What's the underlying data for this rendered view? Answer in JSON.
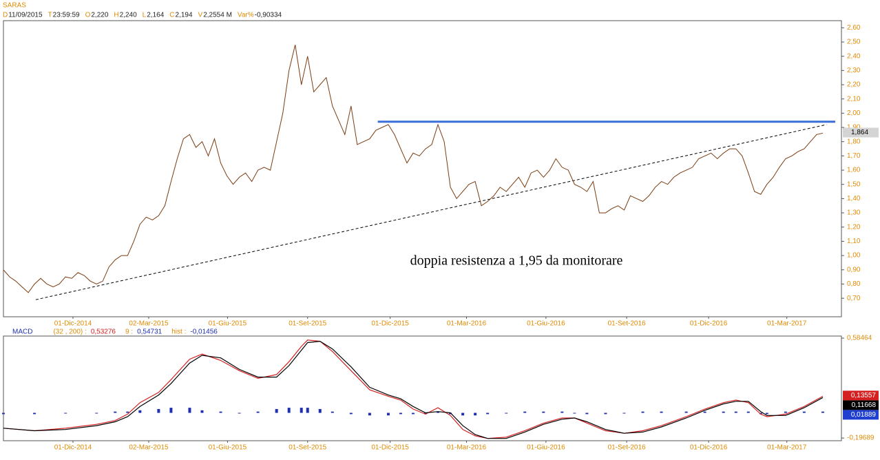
{
  "header": {
    "title": "SARAS",
    "info": [
      {
        "key": "D",
        "value": "11/09/2015"
      },
      {
        "key": "T",
        "value": "23:59:59"
      },
      {
        "key": "O",
        "value": "2,220"
      },
      {
        "key": "H",
        "value": "2,240"
      },
      {
        "key": "L",
        "value": "2,164"
      },
      {
        "key": "C",
        "value": "2,194"
      },
      {
        "key": "V",
        "value": "2,2554 M"
      },
      {
        "key": "Var%",
        "value": "-0,90334"
      }
    ]
  },
  "chart_data": [
    {
      "type": "line",
      "xlim": [
        0,
        135
      ],
      "xticks": [
        {
          "value": 11.2,
          "label": "01-Dic-2014"
        },
        {
          "value": 23.4,
          "label": "02-Mar-2015"
        },
        {
          "value": 36.1,
          "label": "01-Giu-2015"
        },
        {
          "value": 49,
          "label": "01-Set-2015"
        },
        {
          "value": 62.3,
          "label": "01-Dic-2015"
        },
        {
          "value": 74.6,
          "label": "01-Mar-2016"
        },
        {
          "value": 87.4,
          "label": "01-Giu-2016"
        },
        {
          "value": 100.4,
          "label": "01-Set-2016"
        },
        {
          "value": 113.6,
          "label": "01-Dic-2016"
        },
        {
          "value": 126.2,
          "label": "01-Mar-2017"
        }
      ],
      "ylim": [
        0.57,
        2.65
      ],
      "yticks": [
        {
          "value": 0.7,
          "label": "0,70"
        },
        {
          "value": 0.8,
          "label": "0,80"
        },
        {
          "value": 0.9,
          "label": "0,90"
        },
        {
          "value": 1.0,
          "label": "1,00"
        },
        {
          "value": 1.1,
          "label": "1,10"
        },
        {
          "value": 1.2,
          "label": "1,20"
        },
        {
          "value": 1.3,
          "label": "1,30"
        },
        {
          "value": 1.4,
          "label": "1,40"
        },
        {
          "value": 1.5,
          "label": "1,50"
        },
        {
          "value": 1.6,
          "label": "1,60"
        },
        {
          "value": 1.7,
          "label": "1,70"
        },
        {
          "value": 1.8,
          "label": "1,80"
        },
        {
          "value": 1.9,
          "label": "1,90"
        },
        {
          "value": 2.0,
          "label": "2,00"
        },
        {
          "value": 2.1,
          "label": "2,10"
        },
        {
          "value": 2.2,
          "label": "2,20"
        },
        {
          "value": 2.3,
          "label": "2,30"
        },
        {
          "value": 2.4,
          "label": "2,40"
        },
        {
          "value": 2.5,
          "label": "2,50"
        },
        {
          "value": 2.6,
          "label": "2,60"
        }
      ],
      "x": [
        0,
        1,
        2,
        3,
        4,
        5,
        6,
        7,
        8,
        9,
        10,
        11,
        12,
        13,
        14,
        15,
        16,
        17,
        18,
        19,
        20,
        21,
        22,
        23,
        24,
        25,
        26,
        27,
        28,
        29,
        30,
        31,
        32,
        33,
        34,
        35,
        36,
        37,
        38,
        39,
        40,
        41,
        42,
        43,
        44,
        45,
        46,
        47,
        48,
        49,
        50,
        51,
        52,
        53,
        54,
        55,
        56,
        57,
        58,
        59,
        60,
        61,
        62,
        63,
        64,
        65,
        66,
        67,
        68,
        69,
        70,
        71,
        72,
        73,
        74,
        75,
        76,
        77,
        78,
        79,
        80,
        81,
        82,
        83,
        84,
        85,
        86,
        87,
        88,
        89,
        90,
        91,
        92,
        93,
        94,
        95,
        96,
        97,
        98,
        99,
        100,
        101,
        102,
        103,
        104,
        105,
        106,
        107,
        108,
        109,
        110,
        111,
        112,
        113,
        114,
        115,
        116,
        117,
        118,
        119,
        120,
        121,
        122,
        123,
        124,
        125,
        126,
        127,
        128,
        129,
        130,
        131,
        132
      ],
      "series": [
        {
          "color": "#7a3b10",
          "values": [
            0.9,
            0.85,
            0.82,
            0.78,
            0.74,
            0.8,
            0.84,
            0.8,
            0.78,
            0.8,
            0.85,
            0.84,
            0.88,
            0.86,
            0.82,
            0.8,
            0.82,
            0.92,
            0.97,
            1.0,
            1.0,
            1.1,
            1.22,
            1.27,
            1.25,
            1.28,
            1.35,
            1.52,
            1.68,
            1.82,
            1.85,
            1.76,
            1.8,
            1.7,
            1.82,
            1.65,
            1.56,
            1.5,
            1.55,
            1.58,
            1.52,
            1.6,
            1.62,
            1.6,
            1.8,
            2.0,
            2.3,
            2.48,
            2.2,
            2.4,
            2.15,
            2.2,
            2.25,
            2.05,
            1.95,
            1.85,
            2.05,
            1.78,
            1.8,
            1.82,
            1.88,
            1.9,
            1.92,
            1.85,
            1.75,
            1.65,
            1.72,
            1.7,
            1.75,
            1.78,
            1.92,
            1.8,
            1.48,
            1.4,
            1.45,
            1.5,
            1.52,
            1.35,
            1.38,
            1.42,
            1.48,
            1.45,
            1.5,
            1.55,
            1.48,
            1.58,
            1.6,
            1.55,
            1.6,
            1.68,
            1.62,
            1.6,
            1.5,
            1.48,
            1.45,
            1.52,
            1.3,
            1.3,
            1.33,
            1.35,
            1.32,
            1.42,
            1.4,
            1.38,
            1.42,
            1.48,
            1.52,
            1.5,
            1.55,
            1.58,
            1.6,
            1.62,
            1.68,
            1.7,
            1.72,
            1.68,
            1.72,
            1.75,
            1.75,
            1.7,
            1.58,
            1.45,
            1.43,
            1.5,
            1.55,
            1.62,
            1.68,
            1.7,
            1.73,
            1.75,
            1.8,
            1.85,
            1.86
          ]
        }
      ],
      "last": {
        "value": 1.864,
        "label": "1,864"
      },
      "resistance": {
        "y": 1.94,
        "x": [
          60.3,
          134
        ],
        "color": "#3a6fd8"
      },
      "trendline": {
        "x": [
          5.2,
          132.6
        ],
        "y": [
          0.69,
          1.92
        ]
      },
      "annotation": "doppia resistenza a 1,95 da monitorare"
    },
    {
      "type": "macd",
      "title": "MACD",
      "xlim": [
        0,
        135
      ],
      "xticks": [
        {
          "value": 11.2,
          "label": "01-Dic-2014"
        },
        {
          "value": 23.4,
          "label": "02-Mar-2015"
        },
        {
          "value": 36.1,
          "label": "01-Giu-2015"
        },
        {
          "value": 49,
          "label": "01-Set-2015"
        },
        {
          "value": 62.3,
          "label": "01-Dic-2015"
        },
        {
          "value": 74.6,
          "label": "01-Mar-2016"
        },
        {
          "value": 87.4,
          "label": "01-Giu-2016"
        },
        {
          "value": 100.4,
          "label": "01-Set-2016"
        },
        {
          "value": 113.6,
          "label": "01-Dic-2016"
        },
        {
          "value": 126.2,
          "label": "01-Mar-2017"
        }
      ],
      "ylim": [
        -0.218,
        0.601
      ],
      "yticks": [
        {
          "value": -0.19689,
          "label": "-0,19689"
        },
        {
          "value": 0.58464,
          "label": "0,58464"
        }
      ],
      "x": [
        0,
        5,
        10,
        15,
        18,
        20,
        22,
        25,
        27,
        30,
        32,
        35,
        38,
        41,
        44,
        46,
        48,
        49,
        51,
        53,
        56,
        59,
        62,
        64,
        66,
        68,
        70,
        72,
        74,
        76,
        78,
        81,
        84,
        87,
        90,
        92,
        94,
        97,
        100,
        103,
        106,
        110,
        113,
        116,
        118,
        120,
        122,
        123,
        126,
        129,
        132
      ],
      "series": [
        {
          "name": "(32 , 200) :",
          "readout": "0,53276",
          "color": "#d42020",
          "last": {
            "value": 0.13557,
            "label": "0,13557"
          },
          "values": [
            -0.12,
            -0.14,
            -0.12,
            -0.09,
            -0.06,
            -0.01,
            0.08,
            0.16,
            0.26,
            0.42,
            0.46,
            0.41,
            0.33,
            0.27,
            0.3,
            0.4,
            0.52,
            0.57,
            0.56,
            0.48,
            0.33,
            0.18,
            0.13,
            0.1,
            0.03,
            -0.01,
            0.04,
            -0.02,
            -0.13,
            -0.18,
            -0.2,
            -0.19,
            -0.14,
            -0.08,
            -0.04,
            -0.04,
            -0.08,
            -0.14,
            -0.16,
            -0.14,
            -0.1,
            -0.03,
            0.03,
            0.08,
            0.1,
            0.08,
            -0.01,
            -0.03,
            -0.01,
            0.05,
            0.13
          ]
        },
        {
          "name": "9 :",
          "readout": "0,54731",
          "color": "#000000",
          "last": {
            "value": 0.11668,
            "label": "0,11668"
          },
          "values": [
            -0.12,
            -0.14,
            -0.13,
            -0.1,
            -0.07,
            -0.03,
            0.05,
            0.14,
            0.23,
            0.39,
            0.45,
            0.43,
            0.34,
            0.28,
            0.28,
            0.37,
            0.49,
            0.55,
            0.56,
            0.5,
            0.36,
            0.2,
            0.14,
            0.11,
            0.05,
            0.0,
            0.01,
            0.0,
            -0.1,
            -0.17,
            -0.2,
            -0.2,
            -0.15,
            -0.09,
            -0.05,
            -0.04,
            -0.07,
            -0.13,
            -0.16,
            -0.15,
            -0.11,
            -0.04,
            0.02,
            0.07,
            0.09,
            0.09,
            0.01,
            -0.02,
            -0.02,
            0.04,
            0.12
          ]
        },
        {
          "name": "hist :",
          "readout": "-0,01456",
          "color": "#1f2fb0",
          "bars": true,
          "last": {
            "value": 0.01889,
            "label": "0,01889"
          },
          "values": [
            -0.01,
            -0.01,
            0,
            0,
            0.01,
            0.01,
            0.02,
            0.03,
            0.04,
            0.04,
            0.02,
            0.01,
            0,
            0.01,
            0.03,
            0.04,
            0.04,
            0.04,
            0.03,
            0.01,
            -0.01,
            -0.02,
            -0.02,
            -0.01,
            -0.01,
            -0.01,
            0.01,
            -0.01,
            -0.02,
            -0.02,
            -0.01,
            0,
            0.01,
            0.01,
            0.01,
            0,
            -0.01,
            -0.01,
            0,
            0.01,
            0.01,
            0.01,
            0.01,
            0.01,
            0.01,
            0.01,
            -0.01,
            -0.01,
            0.01,
            0.01,
            0.01
          ]
        }
      ]
    }
  ]
}
